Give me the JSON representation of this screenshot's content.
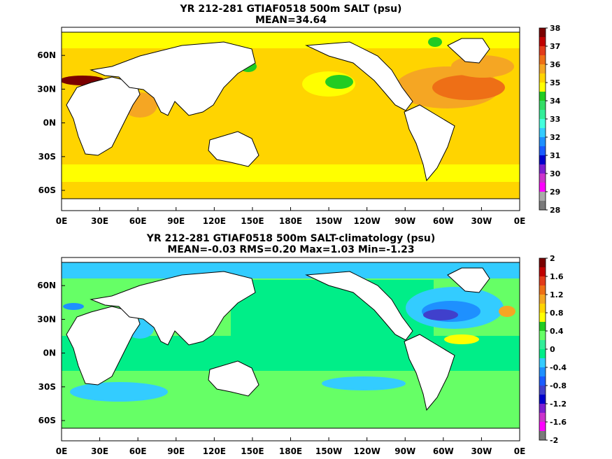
{
  "chart_data": [
    {
      "type": "heatmap",
      "title": "YR 212-281 GTIAF0518 500m SALT (psu)",
      "subtitle": "MEAN=34.64",
      "x_tick_labels": [
        "0E",
        "30E",
        "60E",
        "90E",
        "120E",
        "150E",
        "180E",
        "150W",
        "120W",
        "90W",
        "60W",
        "30W",
        "0E"
      ],
      "y_tick_labels": [
        "60N",
        "30N",
        "0N",
        "30S",
        "60S"
      ],
      "x_range": [
        0,
        360
      ],
      "y_range": [
        -78,
        85
      ],
      "colorbar_labels": [
        "38",
        "37",
        "36",
        "35",
        "34",
        "33",
        "32",
        "31",
        "30",
        "29",
        "28"
      ],
      "colorbar_colors": [
        "#7a0000",
        "#c00000",
        "#e23b1a",
        "#ee6f16",
        "#f5a623",
        "#ffd400",
        "#ffff00",
        "#22cc22",
        "#33dd66",
        "#33ee99",
        "#44ffdd",
        "#33ccff",
        "#1e90ff",
        "#1a5cff",
        "#0000cc",
        "#7d1fd1",
        "#cc33cc",
        "#ff00ff",
        "#aaaaaa",
        "#7a7a7a"
      ],
      "domain_mean": 34.64
    },
    {
      "type": "heatmap",
      "title": "YR 212-281 GTIAF0518 500m SALT-climatology (psu)",
      "subtitle": "MEAN=-0.03   RMS=0.20   Max=1.03   Min=-1.23",
      "x_tick_labels": [
        "0E",
        "30E",
        "60E",
        "90E",
        "120E",
        "150E",
        "180E",
        "150W",
        "120W",
        "90W",
        "60W",
        "30W",
        "0E"
      ],
      "y_tick_labels": [
        "60N",
        "30N",
        "0N",
        "30S",
        "60S"
      ],
      "x_range": [
        0,
        360
      ],
      "y_range": [
        -78,
        85
      ],
      "colorbar_labels": [
        "2",
        "1.6",
        "1.2",
        "0.8",
        "0.4",
        "0",
        "-0.4",
        "-0.8",
        "-1.2",
        "-1.6",
        "-2"
      ],
      "colorbar_colors": [
        "#7a0000",
        "#c00000",
        "#e23b1a",
        "#ee6f16",
        "#f5a623",
        "#ffd400",
        "#ffff00",
        "#22cc22",
        "#66ff66",
        "#33ee99",
        "#00ee88",
        "#33ccff",
        "#1e90ff",
        "#1a5cff",
        "#4040cc",
        "#0000cc",
        "#7d1fd1",
        "#cc33cc",
        "#ff00ff",
        "#7a7a7a"
      ],
      "stats": {
        "mean": -0.03,
        "rms": 0.2,
        "max": 1.03,
        "min": -1.23
      }
    }
  ]
}
